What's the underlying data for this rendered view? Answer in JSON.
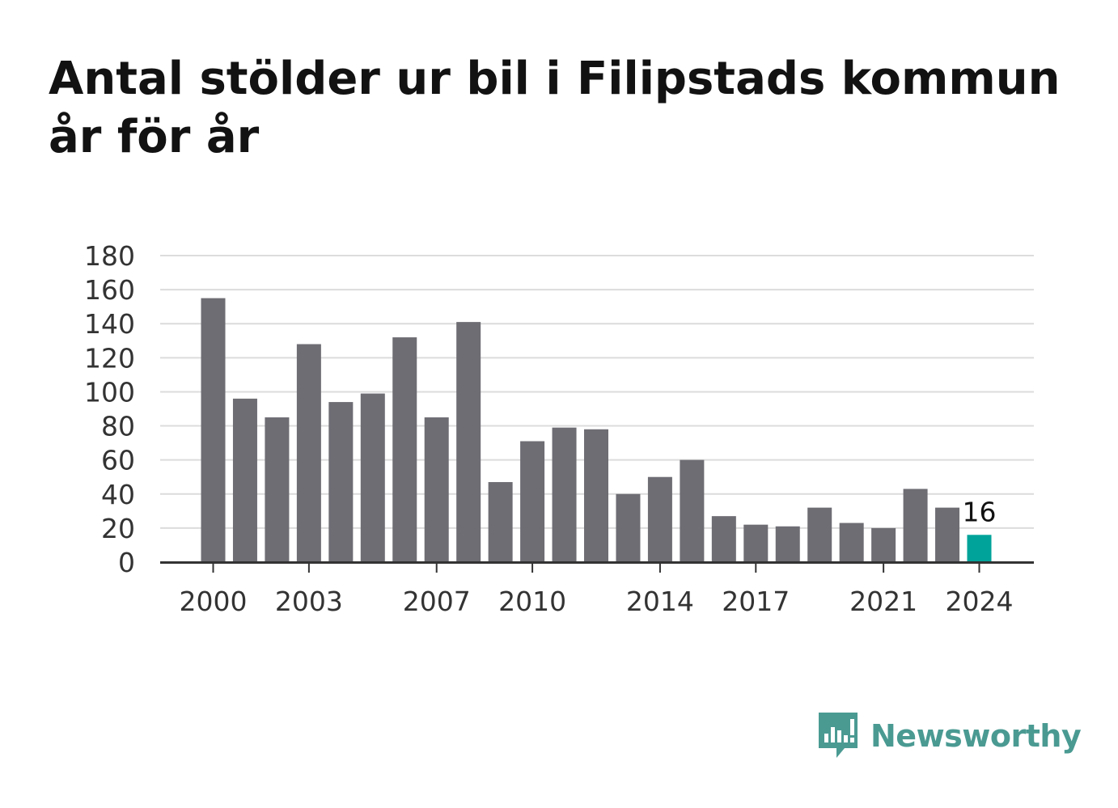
{
  "chart_data": {
    "type": "bar",
    "title": "Antal stölder ur bil i Filipstads kommun år för år",
    "x": [
      2000,
      2001,
      2002,
      2003,
      2004,
      2005,
      2006,
      2007,
      2008,
      2009,
      2010,
      2011,
      2012,
      2013,
      2014,
      2015,
      2016,
      2017,
      2018,
      2019,
      2020,
      2021,
      2022,
      2023,
      2024
    ],
    "values": [
      155,
      96,
      85,
      128,
      94,
      99,
      132,
      85,
      141,
      47,
      71,
      79,
      78,
      40,
      50,
      60,
      27,
      22,
      21,
      32,
      23,
      20,
      43,
      32,
      16
    ],
    "x_tick_labels": [
      "2000",
      "2003",
      "2007",
      "2010",
      "2014",
      "2017",
      "2021",
      "2024"
    ],
    "y_ticks": [
      "0",
      "20",
      "40",
      "60",
      "80",
      "100",
      "120",
      "140",
      "160",
      "180"
    ],
    "ylim": [
      0,
      180
    ],
    "grid": true,
    "highlight_index": 24,
    "highlight_label": "16",
    "bar_color": "#6e6d74",
    "highlight_color": "#00a39a"
  },
  "brand": {
    "name": "Newsworthy",
    "icon": "newsworthy-logo-icon",
    "color": "#4a9a92"
  }
}
